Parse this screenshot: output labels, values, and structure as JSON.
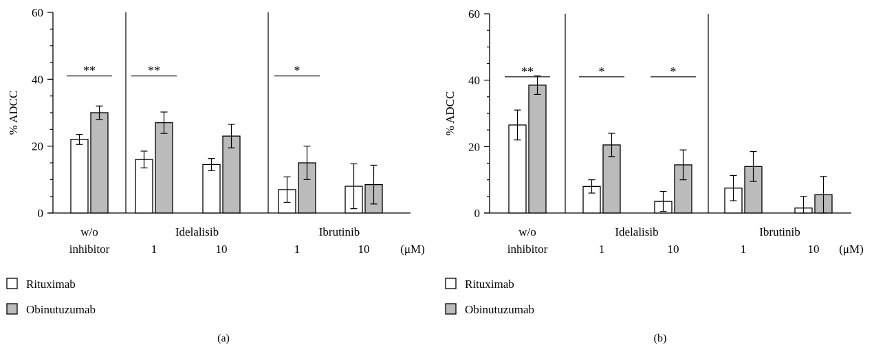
{
  "colors": {
    "rituximab": "#ffffff",
    "obinutuzumab": "#bbbbbb",
    "stroke": "#000000"
  },
  "unit_label": "(μM)",
  "legend": {
    "items": [
      "Rituximab",
      "Obinutuzumab"
    ]
  },
  "chart_data": [
    {
      "panel_label": "(a)",
      "type": "bar",
      "ylabel": "% ADCC",
      "ylim": [
        0,
        60
      ],
      "yticks": [
        0,
        20,
        40,
        60
      ],
      "groups": [
        {
          "label1": "w/o",
          "label2": "inhibitor",
          "subgroups": [
            {
              "conc": "",
              "values": [
                22,
                30
              ],
              "errors": [
                1.5,
                2
              ],
              "sig": "**"
            }
          ]
        },
        {
          "label1": "Idelalisib",
          "label2": "",
          "subgroups": [
            {
              "conc": "1",
              "values": [
                16,
                27
              ],
              "errors": [
                2.5,
                3.2
              ],
              "sig": "**"
            },
            {
              "conc": "10",
              "values": [
                14.5,
                23
              ],
              "errors": [
                1.8,
                3.5
              ],
              "sig": ""
            }
          ]
        },
        {
          "label1": "Ibrutinib",
          "label2": "",
          "subgroups": [
            {
              "conc": "1",
              "values": [
                7,
                15
              ],
              "errors": [
                3.8,
                5
              ],
              "sig": "*"
            },
            {
              "conc": "10",
              "values": [
                8,
                8.5
              ],
              "errors": [
                6.7,
                5.8
              ],
              "sig": ""
            }
          ]
        }
      ],
      "series": [
        {
          "name": "Rituximab"
        },
        {
          "name": "Obinutuzumab"
        }
      ]
    },
    {
      "panel_label": "(b)",
      "type": "bar",
      "ylabel": "% ADCC",
      "ylim": [
        0,
        60
      ],
      "yticks": [
        0,
        20,
        40,
        60
      ],
      "groups": [
        {
          "label1": "w/o",
          "label2": "inhibitor",
          "subgroups": [
            {
              "conc": "",
              "values": [
                26.5,
                38.5
              ],
              "errors": [
                4.5,
                2.8
              ],
              "sig": "**"
            }
          ]
        },
        {
          "label1": "Idelalisib",
          "label2": "",
          "subgroups": [
            {
              "conc": "1",
              "values": [
                8,
                20.5
              ],
              "errors": [
                2,
                3.5
              ],
              "sig": "*"
            },
            {
              "conc": "10",
              "values": [
                3.5,
                14.5
              ],
              "errors": [
                3,
                4.5
              ],
              "sig": "*"
            }
          ]
        },
        {
          "label1": "Ibrutinib",
          "label2": "",
          "subgroups": [
            {
              "conc": "1",
              "values": [
                7.5,
                14
              ],
              "errors": [
                3.8,
                4.5
              ],
              "sig": ""
            },
            {
              "conc": "10",
              "values": [
                1.5,
                5.5
              ],
              "errors": [
                3.5,
                5.5
              ],
              "sig": ""
            }
          ]
        }
      ],
      "series": [
        {
          "name": "Rituximab"
        },
        {
          "name": "Obinutuzumab"
        }
      ]
    }
  ]
}
